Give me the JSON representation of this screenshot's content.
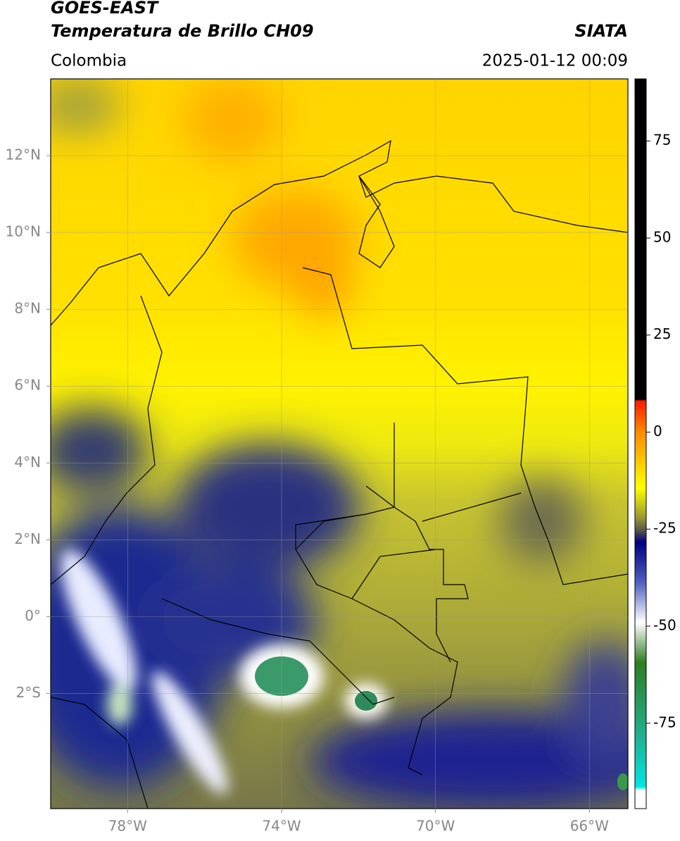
{
  "header": {
    "title": "GOES-EAST",
    "subtitle": "Temperatura de Brillo CH09",
    "region": "Colombia",
    "source": "SIATA",
    "datetime": "2025-01-12 00:09"
  },
  "chart_data": {
    "type": "map",
    "xlim": [
      -80,
      -65
    ],
    "ylim": [
      -5,
      14
    ],
    "xticks": [
      {
        "value": -78,
        "label": "78°W"
      },
      {
        "value": -74,
        "label": "74°W"
      },
      {
        "value": -70,
        "label": "70°W"
      },
      {
        "value": -66,
        "label": "66°W"
      }
    ],
    "yticks": [
      {
        "value": 12,
        "label": "12°N"
      },
      {
        "value": 10,
        "label": "10°N"
      },
      {
        "value": 8,
        "label": "8°N"
      },
      {
        "value": 6,
        "label": "6°N"
      },
      {
        "value": 4,
        "label": "4°N"
      },
      {
        "value": 2,
        "label": "2°N"
      },
      {
        "value": 0,
        "label": "0°"
      },
      {
        "value": -2,
        "label": "2°S"
      }
    ],
    "grid": true,
    "colorbar": {
      "lim": [
        -97,
        91
      ],
      "ticks": [
        75,
        50,
        25,
        0,
        -25,
        -50,
        -75
      ]
    }
  }
}
